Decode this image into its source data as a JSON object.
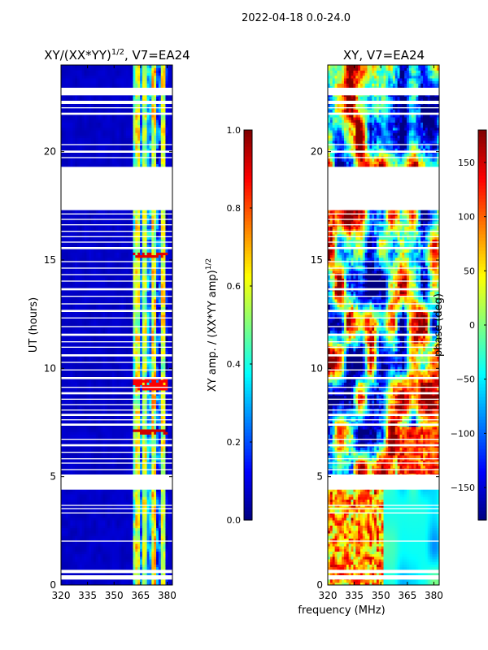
{
  "figure": {
    "suptitle": "2022-04-18 0.0-24.0",
    "xlabel": "frequency (MHz)"
  },
  "chart_data": [
    {
      "type": "heatmap",
      "id": "amp",
      "title": "XY/(XX*YY)",
      "title_superscript": "1/2",
      "title_suffix": ", V7=EA24",
      "xlabel": "frequency (MHz)",
      "ylabel": "UT (hours)",
      "xlim": [
        320,
        383
      ],
      "ylim": [
        0,
        24
      ],
      "xticks": [
        320,
        335,
        350,
        365,
        380
      ],
      "yticks": [
        0,
        5,
        10,
        15,
        20
      ],
      "colormap": "jet",
      "colorbar": {
        "label": "XY amp. / (XX*YY amp)",
        "label_superscript": "1/2",
        "range": [
          0.0,
          1.0
        ],
        "ticks": [
          "0.0",
          "0.2",
          "0.4",
          "0.6",
          "0.8",
          "1.0"
        ],
        "tick_values": [
          0.0,
          0.2,
          0.4,
          0.6,
          0.8,
          1.0
        ]
      },
      "background_value": 0.05,
      "channel_bands": [
        {
          "f0": 320,
          "f1": 361,
          "value": 0.07
        },
        {
          "f0": 361,
          "f1": 362.5,
          "value": 0.45
        },
        {
          "f0": 362.5,
          "f1": 364.5,
          "value": 0.6
        },
        {
          "f0": 364.5,
          "f1": 366.5,
          "value": 0.22
        },
        {
          "f0": 366.5,
          "f1": 369,
          "value": 0.55
        },
        {
          "f0": 369,
          "f1": 371,
          "value": 0.3
        },
        {
          "f0": 371,
          "f1": 373.5,
          "value": 0.62
        },
        {
          "f0": 373.5,
          "f1": 376,
          "value": 0.18
        },
        {
          "f0": 376,
          "f1": 378.5,
          "value": 0.58
        },
        {
          "f0": 378.5,
          "f1": 383,
          "value": 0.08
        }
      ],
      "flag_events_ut": [
        {
          "t0": 15.1,
          "t1": 15.4,
          "value": 0.9
        },
        {
          "t0": 9.0,
          "t1": 9.6,
          "value": 0.88
        },
        {
          "t0": 7.0,
          "t1": 7.25,
          "value": 0.92
        }
      ]
    },
    {
      "type": "heatmap",
      "id": "phase",
      "title": "XY, V7=EA24",
      "xlabel": "frequency (MHz)",
      "ylabel": "",
      "xlim": [
        320,
        383
      ],
      "ylim": [
        0,
        24
      ],
      "xticks": [
        320,
        335,
        350,
        365,
        380
      ],
      "yticks": [
        0,
        5,
        10,
        15,
        20
      ],
      "colormap": "jet",
      "colorbar": {
        "label": "phase (deg)",
        "range": [
          -180,
          180
        ],
        "ticks": [
          "−150",
          "−100",
          "−50",
          "0",
          "50",
          "100",
          "150"
        ],
        "tick_values": [
          -150,
          -100,
          -50,
          0,
          50,
          100,
          150
        ]
      }
    }
  ],
  "flagged_ut_gaps": [
    [
      0.25,
      0.45
    ],
    [
      0.55,
      0.7
    ],
    [
      2.0,
      2.05
    ],
    [
      3.3,
      3.35
    ],
    [
      3.5,
      3.55
    ],
    [
      3.65,
      3.7
    ],
    [
      4.4,
      5.1
    ],
    [
      5.3,
      5.35
    ],
    [
      5.6,
      5.65
    ],
    [
      5.8,
      5.85
    ],
    [
      6.1,
      6.15
    ],
    [
      6.4,
      6.5
    ],
    [
      6.7,
      6.75
    ],
    [
      7.35,
      7.45
    ],
    [
      7.6,
      7.65
    ],
    [
      7.8,
      7.9
    ],
    [
      8.05,
      8.1
    ],
    [
      8.3,
      8.35
    ],
    [
      8.55,
      8.6
    ],
    [
      8.8,
      8.9
    ],
    [
      9.1,
      9.15
    ],
    [
      9.5,
      9.6
    ],
    [
      9.9,
      9.95
    ],
    [
      10.25,
      10.3
    ],
    [
      10.55,
      10.65
    ],
    [
      10.95,
      11.0
    ],
    [
      11.2,
      11.25
    ],
    [
      11.5,
      11.6
    ],
    [
      11.9,
      11.95
    ],
    [
      12.3,
      12.35
    ],
    [
      12.6,
      12.7
    ],
    [
      12.95,
      13.0
    ],
    [
      13.3,
      13.35
    ],
    [
      13.6,
      13.7
    ],
    [
      14.0,
      14.05
    ],
    [
      14.3,
      14.35
    ],
    [
      14.6,
      14.65
    ],
    [
      14.9,
      14.95
    ],
    [
      15.5,
      15.6
    ],
    [
      15.8,
      15.85
    ],
    [
      16.05,
      16.1
    ],
    [
      16.3,
      16.35
    ],
    [
      16.6,
      16.65
    ],
    [
      16.85,
      16.9
    ],
    [
      17.1,
      17.15
    ],
    [
      17.3,
      19.3
    ],
    [
      19.7,
      19.75
    ],
    [
      19.95,
      20.05
    ],
    [
      20.3,
      20.35
    ],
    [
      21.7,
      21.8
    ],
    [
      22.0,
      22.05
    ],
    [
      22.2,
      22.35
    ],
    [
      22.6,
      22.95
    ]
  ]
}
